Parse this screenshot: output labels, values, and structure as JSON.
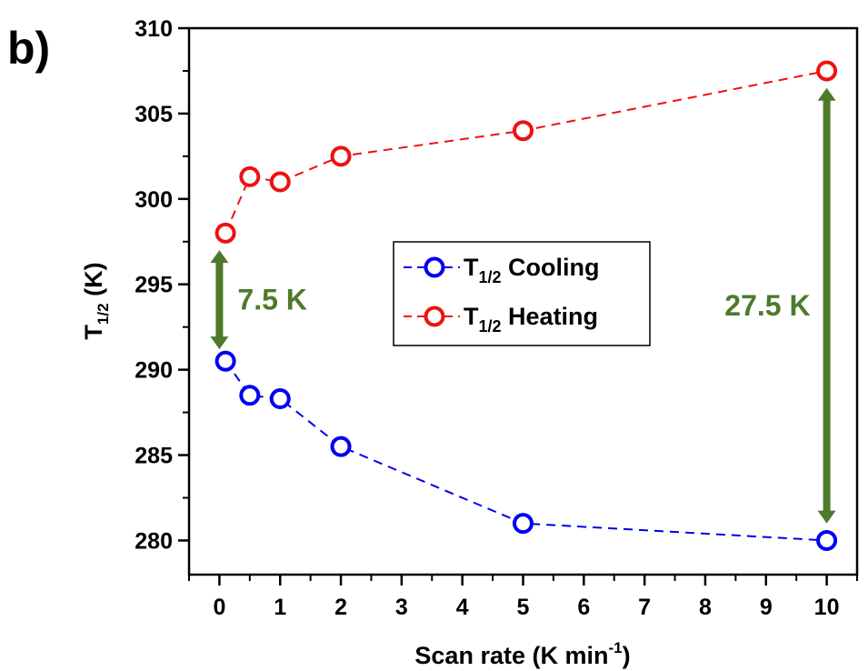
{
  "panel_label": "b)",
  "chart_data": {
    "type": "line",
    "xlabel_main": "Scan rate (K min",
    "xlabel_sup": "-1",
    "xlabel_end": ")",
    "ylabel_main": "T",
    "ylabel_sub": "1/2",
    "ylabel_end": " (K)",
    "xlim": [
      -0.5,
      10.5
    ],
    "ylim": [
      278,
      310
    ],
    "xticks": [
      0,
      1,
      2,
      3,
      4,
      5,
      6,
      7,
      8,
      9,
      10
    ],
    "yticks": [
      280,
      285,
      290,
      295,
      300,
      305,
      310
    ],
    "x": [
      0.1,
      0.5,
      1,
      2,
      5,
      10
    ],
    "series": [
      {
        "name_main": "T",
        "name_sub": "1/2",
        "name_end": " Cooling",
        "color": "#0000ee",
        "values": [
          290.5,
          288.5,
          288.3,
          285.5,
          281.0,
          280.0
        ]
      },
      {
        "name_main": "T",
        "name_sub": "1/2",
        "name_end": " Heating",
        "color": "#ee1111",
        "values": [
          298.0,
          301.3,
          301.0,
          302.5,
          304.0,
          307.5
        ]
      }
    ],
    "legend_position": "center",
    "annotations": [
      {
        "text": "7.5 K",
        "x": 0,
        "y_from": 291.2,
        "y_to": 297.0,
        "color": "#4e7a2a"
      },
      {
        "text": "27.5 K",
        "x": 10,
        "y_from": 281.0,
        "y_to": 306.5,
        "color": "#4e7a2a"
      }
    ]
  }
}
